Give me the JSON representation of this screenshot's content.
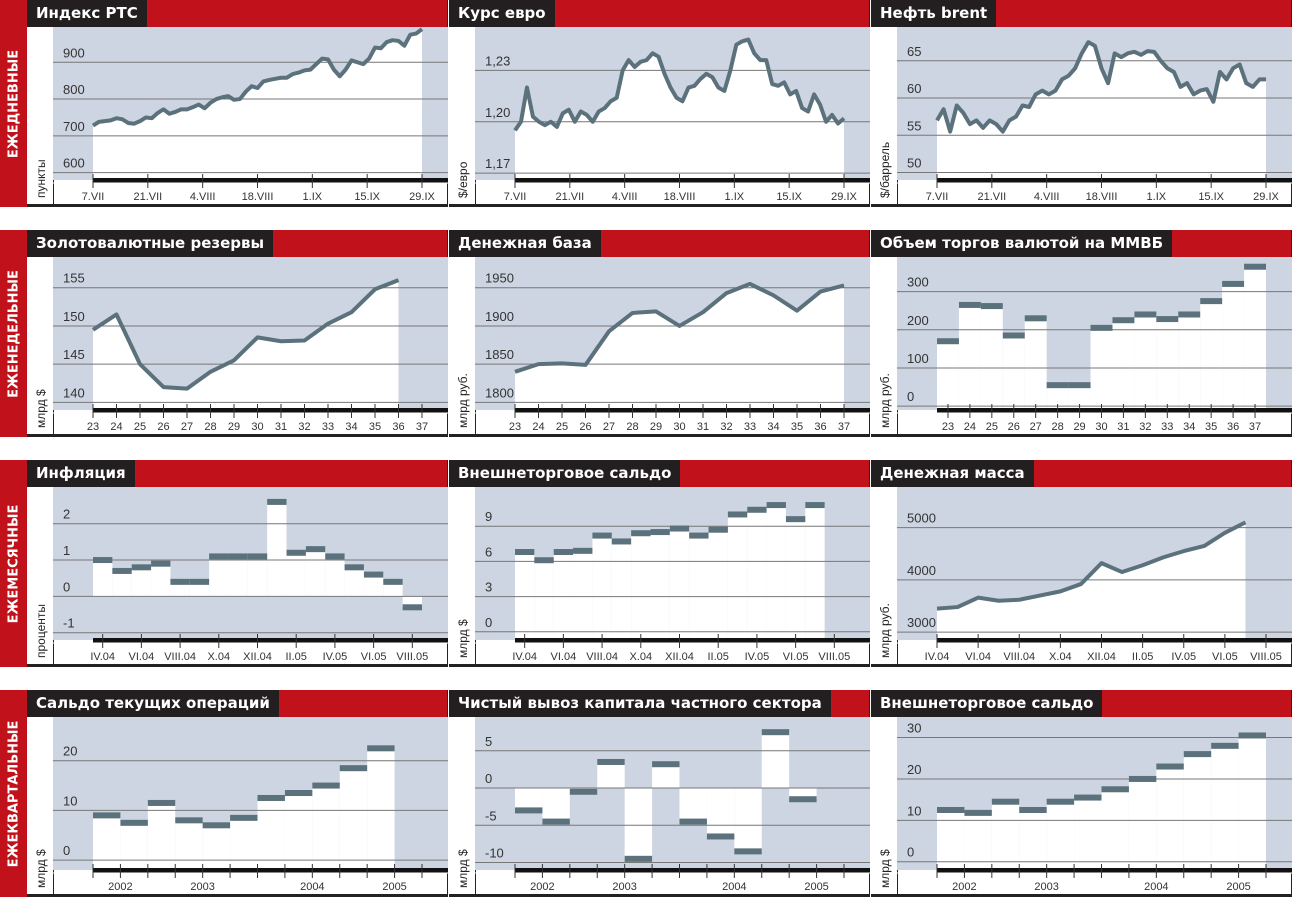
{
  "sections": [
    "ЕЖЕДНЕВНЫЕ",
    "ЕЖЕНЕДЕЛЬНЫЕ",
    "ЕЖЕМЕСЯЧНЫЕ",
    "ЕЖЕКВАРТАЛЬНЫЕ"
  ],
  "colors": {
    "red": "#c1121c",
    "black": "#231f20",
    "shade": "#cdd5e2",
    "line": "#5b717c"
  },
  "chart_data": [
    {
      "title": "Индекс РТС",
      "type": "line",
      "ylabel": "пункты",
      "ylim": [
        580,
        985
      ],
      "yticks": [
        600,
        700,
        800,
        900
      ],
      "xlim": [
        0,
        56
      ],
      "xlabels": [
        "7.VII",
        "21.VII",
        "4.VIII",
        "18.VIII",
        "1.IX",
        "15.IX",
        "29.IX"
      ],
      "xstart": 0,
      "xstep": 1,
      "values": [
        728,
        738,
        740,
        742,
        748,
        745,
        735,
        733,
        740,
        750,
        748,
        762,
        772,
        760,
        765,
        772,
        772,
        778,
        785,
        775,
        790,
        800,
        805,
        808,
        798,
        800,
        820,
        835,
        830,
        848,
        852,
        855,
        858,
        858,
        868,
        872,
        878,
        880,
        895,
        910,
        908,
        880,
        862,
        880,
        905,
        900,
        895,
        910,
        940,
        938,
        955,
        960,
        958,
        945,
        975,
        978,
        990
      ]
    },
    {
      "title": "Курс евро",
      "type": "line",
      "ylabel": "$/евро",
      "ylim": [
        1.166,
        1.253
      ],
      "yticks": [
        "1,17",
        "1,20",
        "1,23"
      ],
      "ytickvals": [
        1.17,
        1.2,
        1.23
      ],
      "xlim": [
        0,
        55
      ],
      "xlabels": [
        "7.VII",
        "21.VII",
        "4.VIII",
        "18.VIII",
        "1.IX",
        "15.IX",
        "29.IX"
      ],
      "xstart": 0,
      "xstep": 1,
      "values": [
        1.195,
        1.2,
        1.22,
        1.203,
        1.2,
        1.198,
        1.2,
        1.197,
        1.205,
        1.207,
        1.2,
        1.206,
        1.204,
        1.2,
        1.206,
        1.208,
        1.212,
        1.214,
        1.23,
        1.236,
        1.232,
        1.235,
        1.236,
        1.24,
        1.238,
        1.228,
        1.22,
        1.214,
        1.212,
        1.22,
        1.221,
        1.225,
        1.228,
        1.226,
        1.22,
        1.218,
        1.23,
        1.245,
        1.247,
        1.248,
        1.24,
        1.236,
        1.236,
        1.222,
        1.221,
        1.223,
        1.216,
        1.218,
        1.208,
        1.206,
        1.216,
        1.21,
        1.2,
        1.204,
        1.199,
        1.202
      ]
    },
    {
      "title": "Нефть brent",
      "type": "line",
      "ylabel": "$/баррель",
      "ylim": [
        49,
        69
      ],
      "yticks": [
        50,
        55,
        60,
        65
      ],
      "xlim": [
        0,
        50
      ],
      "xlabels": [
        "7.VII",
        "21.VII",
        "4.VIII",
        "18.VIII",
        "1.IX",
        "15.IX",
        "29.IX"
      ],
      "xstart": 0,
      "xstep": 1,
      "values": [
        57,
        58.5,
        55.5,
        59,
        58,
        56.5,
        57,
        56,
        57,
        56.5,
        55.5,
        57,
        57.5,
        59,
        58.8,
        60.5,
        61,
        60.5,
        61,
        62.5,
        63,
        64,
        66,
        67.5,
        67,
        64,
        62,
        66,
        65.5,
        66,
        66.2,
        65.8,
        66.3,
        66.2,
        65,
        64,
        63.5,
        61.5,
        62,
        60.5,
        61,
        61.2,
        59.5,
        63.5,
        62.5,
        64,
        64.5,
        62,
        61.5,
        62.5,
        62.5
      ]
    },
    {
      "title": "Золотовалютные резервы",
      "type": "line",
      "ylabel": "млрд $",
      "ylim": [
        139,
        158.5
      ],
      "yticks": [
        140,
        145,
        150,
        155
      ],
      "xlim": [
        0,
        14
      ],
      "xlabels": [
        "23",
        "24",
        "25",
        "26",
        "27",
        "28",
        "29",
        "30",
        "31",
        "32",
        "33",
        "34",
        "35",
        "36",
        "37"
      ],
      "xstart": 0,
      "xstep": 1,
      "values": [
        149.5,
        151.5,
        145,
        142,
        141.8,
        144,
        145.5,
        148.5,
        148,
        148.1,
        150.3,
        151.8,
        154.8,
        156
      ]
    },
    {
      "title": "Денежная база",
      "type": "line",
      "ylabel": "млрд руб.",
      "ylim": [
        1790,
        1985
      ],
      "yticks": [
        1800,
        1850,
        1900,
        1950
      ],
      "xlim": [
        0,
        14
      ],
      "xlabels": [
        "23",
        "24",
        "25",
        "26",
        "27",
        "28",
        "29",
        "30",
        "31",
        "32",
        "33",
        "34",
        "35",
        "36",
        "37"
      ],
      "xstart": 0,
      "xstep": 1,
      "values": [
        1840,
        1850,
        1851,
        1849,
        1893,
        1917,
        1919,
        1900,
        1918,
        1943,
        1955,
        1940,
        1920,
        1945,
        1953
      ]
    },
    {
      "title": "Объем торгов валютой на ММВБ",
      "type": "step",
      "ylabel": "млрд руб.",
      "ylim": [
        -10,
        380
      ],
      "yticks": [
        0,
        100,
        200,
        300
      ],
      "xlim": [
        -0.5,
        14.5
      ],
      "xlabels": [
        "23",
        "24",
        "25",
        "26",
        "27",
        "28",
        "29",
        "30",
        "31",
        "32",
        "33",
        "34",
        "35",
        "36",
        "37"
      ],
      "xstart": 0,
      "xstep": 1,
      "values": [
        170,
        265,
        262,
        185,
        230,
        55,
        55,
        205,
        225,
        240,
        228,
        240,
        275,
        320,
        365
      ]
    },
    {
      "title": "Инфляция",
      "type": "step",
      "baseline": 0,
      "ylabel": "проценты",
      "ylim": [
        -1.2,
        2.9
      ],
      "yticks": [
        -1,
        0,
        1,
        2
      ],
      "ytickvals": [
        -1,
        0,
        1,
        2
      ],
      "xlim": [
        -0.5,
        16.5
      ],
      "xlabels": [
        "IV.04",
        "VI.04",
        "VIII.04",
        "X.04",
        "XII.04",
        "II.05",
        "IV.05",
        "VI.05",
        "VIII.05"
      ],
      "xlabelstep": 2,
      "xstart": 0,
      "xstep": 1,
      "values": [
        1.0,
        0.7,
        0.8,
        0.9,
        0.4,
        0.4,
        1.1,
        1.1,
        1.1,
        2.6,
        1.2,
        1.3,
        1.1,
        0.8,
        0.6,
        0.4,
        -0.3
      ]
    },
    {
      "title": "Внешнеторговое сальдо",
      "type": "step",
      "ylabel": "млрд $",
      "ylim": [
        -0.7,
        12
      ],
      "yticks": [
        0,
        3,
        6,
        9
      ],
      "xlim": [
        -0.5,
        16.5
      ],
      "xlabels": [
        "IV.04",
        "VI.04",
        "VIII.04",
        "X.04",
        "XII.04",
        "II.05",
        "IV.05",
        "VI.05",
        "VIII.05"
      ],
      "xlabelstep": 2,
      "xstart": 0,
      "xstep": 1,
      "values": [
        6.8,
        6.1,
        6.8,
        6.9,
        8.2,
        7.7,
        8.4,
        8.5,
        8.8,
        8.2,
        8.7,
        10.0,
        10.4,
        10.8,
        9.6,
        10.8
      ]
    },
    {
      "title": "Денежная масса",
      "type": "line",
      "ylabel": "млрд руб.",
      "ylim": [
        2850,
        5700
      ],
      "yticks": [
        3000,
        4000,
        5000
      ],
      "xlim": [
        0,
        16
      ],
      "xlabels": [
        "IV.04",
        "VI.04",
        "VIII.04",
        "X.04",
        "XII.04",
        "II.05",
        "IV.05",
        "VI.05",
        "VIII.05"
      ],
      "xlabelstep": 2,
      "xstart": 0,
      "xstep": 1,
      "values": [
        3450,
        3480,
        3660,
        3600,
        3620,
        3700,
        3780,
        3920,
        4320,
        4150,
        4280,
        4430,
        4550,
        4650,
        4900,
        5100
      ]
    },
    {
      "title": "Сальдо текущих операций",
      "type": "step",
      "ylabel": "млрд $",
      "ylim": [
        -2,
        28
      ],
      "yticks": [
        0,
        10,
        20
      ],
      "xlim": [
        0,
        12
      ],
      "xlabels": [
        "2002",
        "2003",
        "2004",
        "2005"
      ],
      "xlabelat": [
        1,
        4,
        8,
        11
      ],
      "xticksat": [
        0,
        1,
        2,
        3,
        4,
        5,
        6,
        7,
        8,
        9,
        10,
        11,
        12
      ],
      "xstart": 0.5,
      "xstep": 1,
      "values": [
        9,
        7.5,
        11.5,
        8,
        7,
        8.5,
        12.5,
        13.5,
        15,
        18.5,
        22.5
      ]
    },
    {
      "title": "Чистый вывоз капитала частного сектора",
      "type": "step",
      "baseline": 0,
      "ylabel": "млрд $",
      "ylim": [
        -11,
        9
      ],
      "yticks": [
        -10,
        -5,
        0,
        5
      ],
      "xlim": [
        0,
        12
      ],
      "xlabels": [
        "2002",
        "2003",
        "2004",
        "2005"
      ],
      "xlabelat": [
        1,
        4,
        8,
        11
      ],
      "xticksat": [
        0,
        1,
        2,
        3,
        4,
        5,
        6,
        7,
        8,
        9,
        10,
        11,
        12
      ],
      "xstart": 0.5,
      "xstep": 1,
      "values": [
        -3,
        -4.5,
        -0.5,
        3.5,
        -9.5,
        3.2,
        -4.5,
        -6.5,
        -8.5,
        7.5,
        -1.5
      ]
    },
    {
      "title": "Внешнеторговое сальдо",
      "type": "step",
      "ylabel": "млрд $",
      "ylim": [
        -2,
        34
      ],
      "yticks": [
        0,
        10,
        20,
        30
      ],
      "xlim": [
        0,
        12
      ],
      "xlabels": [
        "2002",
        "2003",
        "2004",
        "2005"
      ],
      "xlabelat": [
        1,
        4,
        8,
        11
      ],
      "xticksat": [
        0,
        1,
        2,
        3,
        4,
        5,
        6,
        7,
        8,
        9,
        10,
        11,
        12
      ],
      "xstart": 0.5,
      "xstep": 1,
      "values": [
        12.5,
        11.8,
        14.5,
        12.5,
        14.5,
        15.5,
        17.5,
        20,
        23,
        26,
        28,
        30.5
      ]
    }
  ]
}
